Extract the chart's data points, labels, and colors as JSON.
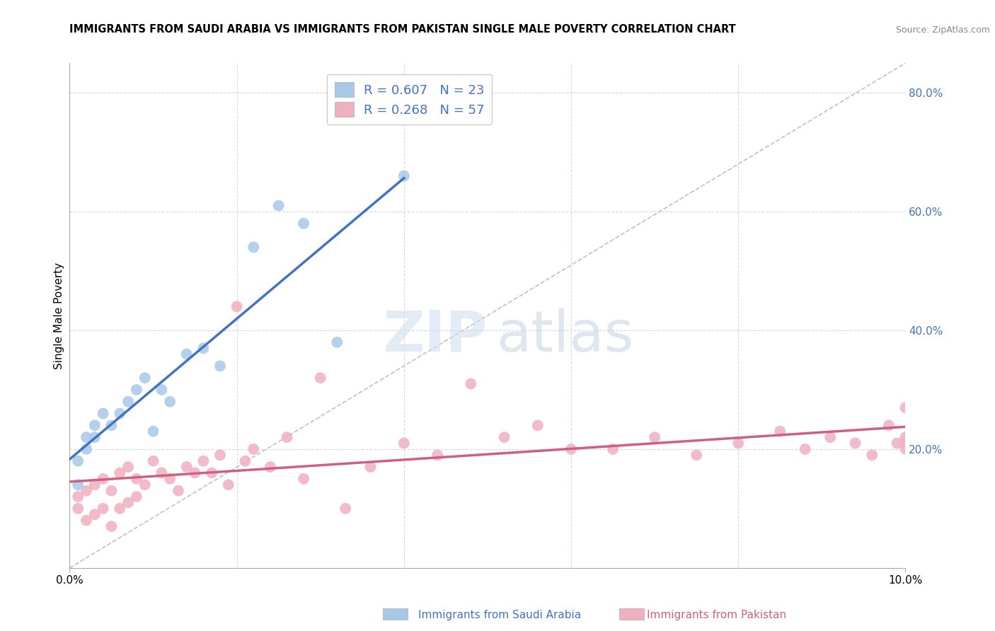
{
  "title": "IMMIGRANTS FROM SAUDI ARABIA VS IMMIGRANTS FROM PAKISTAN SINGLE MALE POVERTY CORRELATION CHART",
  "source": "Source: ZipAtlas.com",
  "ylabel": "Single Male Poverty",
  "background_color": "#ffffff",
  "grid_color": "#d8d8d8",
  "saudi_color": "#a8c8e8",
  "saudi_line_color": "#4472c4",
  "pakistan_color": "#f0b0c0",
  "pakistan_line_color": "#d06080",
  "diagonal_color": "#c0c0c0",
  "legend_saudi_R": "0.607",
  "legend_saudi_N": "23",
  "legend_pakistan_R": "0.268",
  "legend_pakistan_N": "57",
  "xlim": [
    0.0,
    0.1
  ],
  "ylim": [
    0.0,
    0.85
  ],
  "right_yticks": [
    0.2,
    0.4,
    0.6,
    0.8
  ],
  "right_yticklabels": [
    "20.0%",
    "40.0%",
    "60.0%",
    "80.0%"
  ],
  "saudi_x": [
    0.001,
    0.001,
    0.002,
    0.002,
    0.003,
    0.003,
    0.004,
    0.005,
    0.006,
    0.007,
    0.008,
    0.009,
    0.01,
    0.011,
    0.012,
    0.014,
    0.016,
    0.018,
    0.022,
    0.025,
    0.028,
    0.032,
    0.04
  ],
  "saudi_y": [
    0.14,
    0.18,
    0.2,
    0.22,
    0.22,
    0.24,
    0.26,
    0.24,
    0.26,
    0.28,
    0.3,
    0.32,
    0.23,
    0.3,
    0.28,
    0.36,
    0.37,
    0.34,
    0.54,
    0.61,
    0.58,
    0.38,
    0.66
  ],
  "pakistan_x": [
    0.001,
    0.001,
    0.002,
    0.002,
    0.003,
    0.003,
    0.004,
    0.004,
    0.005,
    0.005,
    0.006,
    0.006,
    0.007,
    0.007,
    0.008,
    0.008,
    0.009,
    0.01,
    0.011,
    0.012,
    0.013,
    0.014,
    0.015,
    0.016,
    0.017,
    0.018,
    0.019,
    0.02,
    0.021,
    0.022,
    0.024,
    0.026,
    0.028,
    0.03,
    0.033,
    0.036,
    0.04,
    0.044,
    0.048,
    0.052,
    0.056,
    0.06,
    0.065,
    0.07,
    0.075,
    0.08,
    0.085,
    0.088,
    0.091,
    0.094,
    0.096,
    0.098,
    0.099,
    0.1,
    0.1,
    0.1,
    0.1
  ],
  "pakistan_y": [
    0.12,
    0.1,
    0.13,
    0.08,
    0.14,
    0.09,
    0.15,
    0.1,
    0.13,
    0.07,
    0.16,
    0.1,
    0.17,
    0.11,
    0.15,
    0.12,
    0.14,
    0.18,
    0.16,
    0.15,
    0.13,
    0.17,
    0.16,
    0.18,
    0.16,
    0.19,
    0.14,
    0.44,
    0.18,
    0.2,
    0.17,
    0.22,
    0.15,
    0.32,
    0.1,
    0.17,
    0.21,
    0.19,
    0.31,
    0.22,
    0.24,
    0.2,
    0.2,
    0.22,
    0.19,
    0.21,
    0.23,
    0.2,
    0.22,
    0.21,
    0.19,
    0.24,
    0.21,
    0.27,
    0.21,
    0.2,
    0.22
  ]
}
